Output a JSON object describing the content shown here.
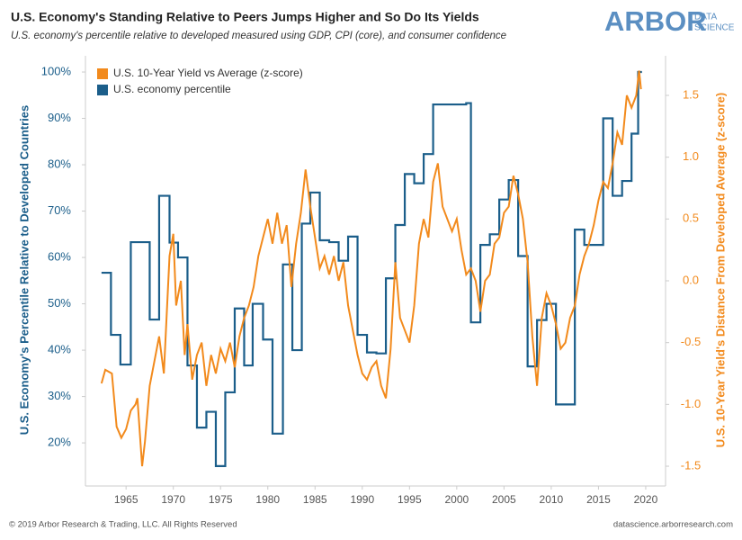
{
  "chart_data": {
    "type": "line",
    "title": "U.S. Economy's Standing Relative to Peers Jumps Higher and So Do Its Yields",
    "subtitle": "U.S. economy's percentile relative to developed measured using GDP, CPI (core), and consumer confidence",
    "y_label": "U.S. Economy's Percentile Relative to Developed Countries",
    "y2_label": "U.S. 10-Year Yield's Distance From Developed Average (z-score)",
    "xlim": [
      1960.7,
      2022.1
    ],
    "xticks": [
      1965,
      1970,
      1975,
      1980,
      1985,
      1990,
      1995,
      2000,
      2005,
      2010,
      2015,
      2020
    ],
    "ylim": [
      10.7,
      103.5
    ],
    "yticks": [
      {
        "value": 20,
        "label": "20%"
      },
      {
        "value": 30,
        "label": "30%"
      },
      {
        "value": 40,
        "label": "40%"
      },
      {
        "value": 50,
        "label": "50%"
      },
      {
        "value": 60,
        "label": "60%"
      },
      {
        "value": 70,
        "label": "70%"
      },
      {
        "value": 80,
        "label": "80%"
      },
      {
        "value": 90,
        "label": "90%"
      },
      {
        "value": 100,
        "label": "100%"
      }
    ],
    "y2lim": [
      -1.66,
      1.82
    ],
    "y2ticks": [
      -1.5,
      {
        "value": -1,
        "label": "-1.0"
      },
      -0.5,
      {
        "value": 0,
        "label": "0.0"
      },
      0.5,
      {
        "value": 1,
        "label": "1.0"
      },
      1.5
    ],
    "grid": false,
    "legend": "top-left",
    "series": [
      {
        "name": "U.S. 10-Year Yield vs Average (z-score)",
        "color": "#f28a1c",
        "axis": "y2",
        "step": false,
        "x": [
          1962.4,
          1962.8,
          1963.5,
          1964,
          1964.5,
          1965,
          1965.5,
          1966,
          1966.2,
          1966.7,
          1967,
          1967.5,
          1968,
          1968.5,
          1969,
          1969.6,
          1970,
          1970.3,
          1970.8,
          1971.2,
          1971.5,
          1972,
          1972.5,
          1973,
          1973.5,
          1974,
          1974.5,
          1975,
          1975.5,
          1976,
          1976.5,
          1977,
          1977.5,
          1978,
          1978.5,
          1979,
          1979.5,
          1980,
          1980.5,
          1981,
          1981.5,
          1982,
          1982.5,
          1983,
          1983.5,
          1984,
          1984.5,
          1985,
          1985.5,
          1986,
          1986.5,
          1987,
          1987.5,
          1988,
          1988.5,
          1989,
          1989.5,
          1990,
          1990.5,
          1991,
          1991.5,
          1992,
          1992.5,
          1993,
          1993.5,
          1994,
          1994.5,
          1995,
          1995.5,
          1996,
          1996.5,
          1997,
          1997.5,
          1998,
          1998.5,
          1999,
          1999.5,
          2000,
          2000.5,
          2001,
          2001.5,
          2002,
          2002.5,
          2003,
          2003.5,
          2004,
          2004.5,
          2005,
          2005.5,
          2006,
          2006.5,
          2007,
          2007.5,
          2008,
          2008.5,
          2009,
          2009.5,
          2010,
          2010.5,
          2011,
          2011.5,
          2012,
          2012.5,
          2013,
          2013.5,
          2014,
          2014.5,
          2015,
          2015.5,
          2016,
          2016.5,
          2017,
          2017.5,
          2018,
          2018.5,
          2019,
          2019.3,
          2019.5
        ],
        "values": [
          -0.83,
          -0.72,
          -0.75,
          -1.18,
          -1.27,
          -1.2,
          -1.05,
          -1.0,
          -0.95,
          -1.5,
          -1.3,
          -0.85,
          -0.65,
          -0.45,
          -0.75,
          0.2,
          0.38,
          -0.2,
          0.0,
          -0.6,
          -0.35,
          -0.8,
          -0.6,
          -0.5,
          -0.85,
          -0.6,
          -0.75,
          -0.55,
          -0.65,
          -0.5,
          -0.7,
          -0.45,
          -0.3,
          -0.2,
          -0.05,
          0.2,
          0.35,
          0.5,
          0.3,
          0.55,
          0.3,
          0.45,
          -0.05,
          0.3,
          0.55,
          0.9,
          0.6,
          0.35,
          0.1,
          0.2,
          0.05,
          0.2,
          0.0,
          0.15,
          -0.2,
          -0.4,
          -0.6,
          -0.75,
          -0.8,
          -0.7,
          -0.65,
          -0.85,
          -0.95,
          -0.55,
          0.15,
          -0.3,
          -0.4,
          -0.5,
          -0.2,
          0.3,
          0.5,
          0.35,
          0.8,
          0.95,
          0.6,
          0.5,
          0.4,
          0.5,
          0.25,
          0.05,
          0.1,
          0.0,
          -0.25,
          0.0,
          0.05,
          0.3,
          0.35,
          0.55,
          0.6,
          0.85,
          0.7,
          0.5,
          0.15,
          -0.45,
          -0.85,
          -0.3,
          -0.1,
          -0.2,
          -0.35,
          -0.55,
          -0.5,
          -0.3,
          -0.2,
          0.05,
          0.2,
          0.3,
          0.45,
          0.65,
          0.8,
          0.75,
          0.95,
          1.2,
          1.1,
          1.5,
          1.4,
          1.5,
          1.7,
          1.55
        ]
      },
      {
        "name": "U.S. economy percentile",
        "color": "#1b5e8a",
        "axis": "y",
        "step": true,
        "x": [
          1962.4,
          1963.4,
          1964.4,
          1965.5,
          1967.5,
          1968.5,
          1969.6,
          1970.5,
          1971.5,
          1972.5,
          1973.5,
          1974.5,
          1975.5,
          1976.5,
          1977.5,
          1978.4,
          1979.5,
          1980.5,
          1981.6,
          1982.6,
          1983.6,
          1984.5,
          1985.5,
          1986.5,
          1987.5,
          1988.5,
          1989.5,
          1990.5,
          1991.5,
          1992.5,
          1993.5,
          1994.5,
          1995.5,
          1996.5,
          1997.5,
          2001,
          2001.5,
          2002.5,
          2003.5,
          2004.5,
          2005.5,
          2006.5,
          2007.5,
          2008.5,
          2009.5,
          2010.5,
          2012.5,
          2013.5,
          2015.5,
          2016.5,
          2017.5,
          2018.5,
          2019.2
        ],
        "values": [
          56.7,
          43.3,
          36.9,
          63.3,
          46.6,
          73.3,
          63.2,
          60,
          36.7,
          23.3,
          26.7,
          15,
          30.9,
          49,
          36.7,
          50,
          42.3,
          22,
          58.5,
          40,
          67.3,
          74,
          63.7,
          63.3,
          59.3,
          64.5,
          43.3,
          39.5,
          39.3,
          55.5,
          67,
          78,
          76,
          82.3,
          93,
          93.3,
          46,
          62.7,
          65,
          72.5,
          76.7,
          60.3,
          36.5,
          46.5,
          50,
          28.3,
          66,
          62.7,
          90,
          73.3,
          76.5,
          86.7,
          100
        ]
      }
    ]
  },
  "logo": {
    "name": "ARBOR",
    "tagline": [
      "DATA",
      "SCIENCE"
    ]
  },
  "footer": {
    "copyright": "© 2019 Arbor Research & Trading, LLC. All Rights Reserved",
    "url": "datascience.arborresearch.com"
  }
}
